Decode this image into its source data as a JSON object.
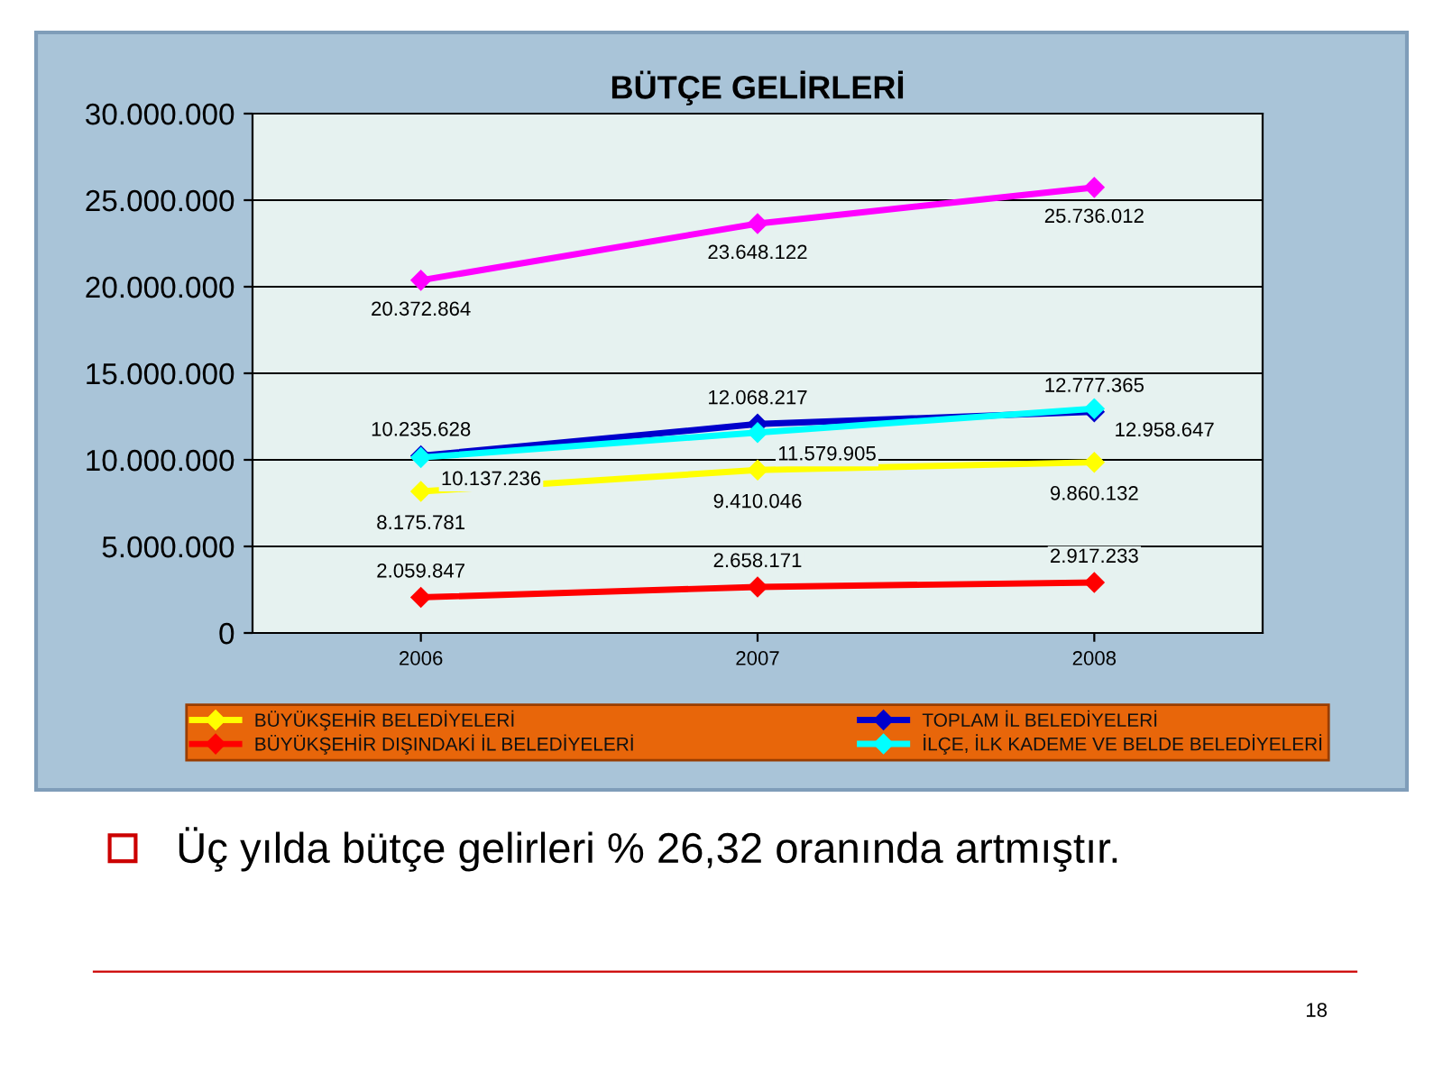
{
  "chart_data": {
    "type": "line",
    "title": "BÜTÇE GELİRLERİ",
    "categories": [
      "2006",
      "2007",
      "2008"
    ],
    "series": [
      {
        "color": "#ff00ff",
        "values": [
          20372864,
          23648122,
          25736012
        ],
        "value_labels": [
          "20.372.864",
          "23.648.122",
          "25.736.012"
        ]
      },
      {
        "name": "BÜYÜKŞEHİR BELEDİYELERİ",
        "color": "#ffff00",
        "values": [
          8175781,
          9410046,
          9860132
        ],
        "value_labels": [
          "8.175.781",
          "9.410.046",
          "9.860.132"
        ]
      },
      {
        "name": "BÜYÜKŞEHİR DIŞINDAKİ İL BELEDİYELERİ",
        "color": "#ff0000",
        "values": [
          2059847,
          2658171,
          2917233
        ],
        "value_labels": [
          "2.059.847",
          "2.658.171",
          "2.917.233"
        ]
      },
      {
        "name": "TOPLAM İL BELEDİYELERİ",
        "color": "#0000cc",
        "values": [
          10235628,
          12068217,
          12777365
        ],
        "value_labels": [
          "10.235.628",
          "12.068.217",
          "12.777.365"
        ]
      },
      {
        "name": "İLÇE, İLK KADEME VE BELDE BELEDİYELERİ",
        "color": "#00ffff",
        "values": [
          10137236,
          11579905,
          12958647
        ],
        "value_labels": [
          "10.137.236",
          "11.579.905",
          "12.958.647"
        ]
      }
    ],
    "ylim": [
      0,
      30000000
    ],
    "yticks": [
      {
        "value": 0,
        "label": "0"
      },
      {
        "value": 5000000,
        "label": "5.000.000"
      },
      {
        "value": 10000000,
        "label": "10.000.000"
      },
      {
        "value": 15000000,
        "label": "15.000.000"
      },
      {
        "value": 20000000,
        "label": "20.000.000"
      },
      {
        "value": 25000000,
        "label": "25.000.000"
      },
      {
        "value": 30000000,
        "label": "30.000.000"
      }
    ],
    "grid": "y",
    "legend": "bottom",
    "marker": "diamond",
    "line_style": "solid",
    "annotations": [
      "Üç yılda bütçe gelirleri % 26,32 oranında artmıştır.",
      "18"
    ]
  }
}
